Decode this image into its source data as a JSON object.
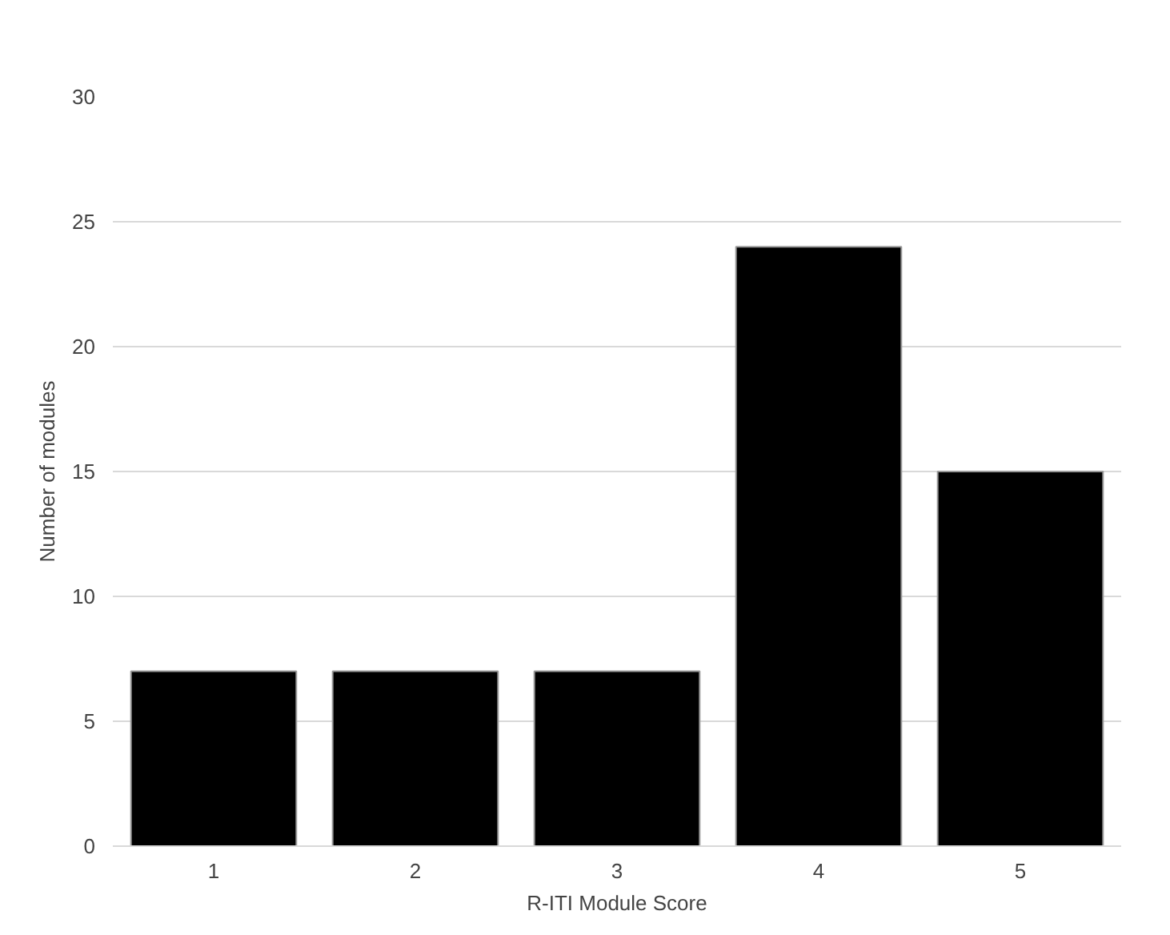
{
  "chart_data": {
    "type": "bar",
    "xlabel": "R-ITI Module Score",
    "ylabel": "Number of modules",
    "categories": [
      "1",
      "2",
      "3",
      "4",
      "5"
    ],
    "values": [
      7,
      7,
      7,
      24,
      15
    ],
    "color": "#000000",
    "ylim": [
      0,
      30
    ],
    "yticks": [
      0,
      5,
      10,
      15,
      20,
      25,
      30
    ],
    "grid": "y"
  }
}
